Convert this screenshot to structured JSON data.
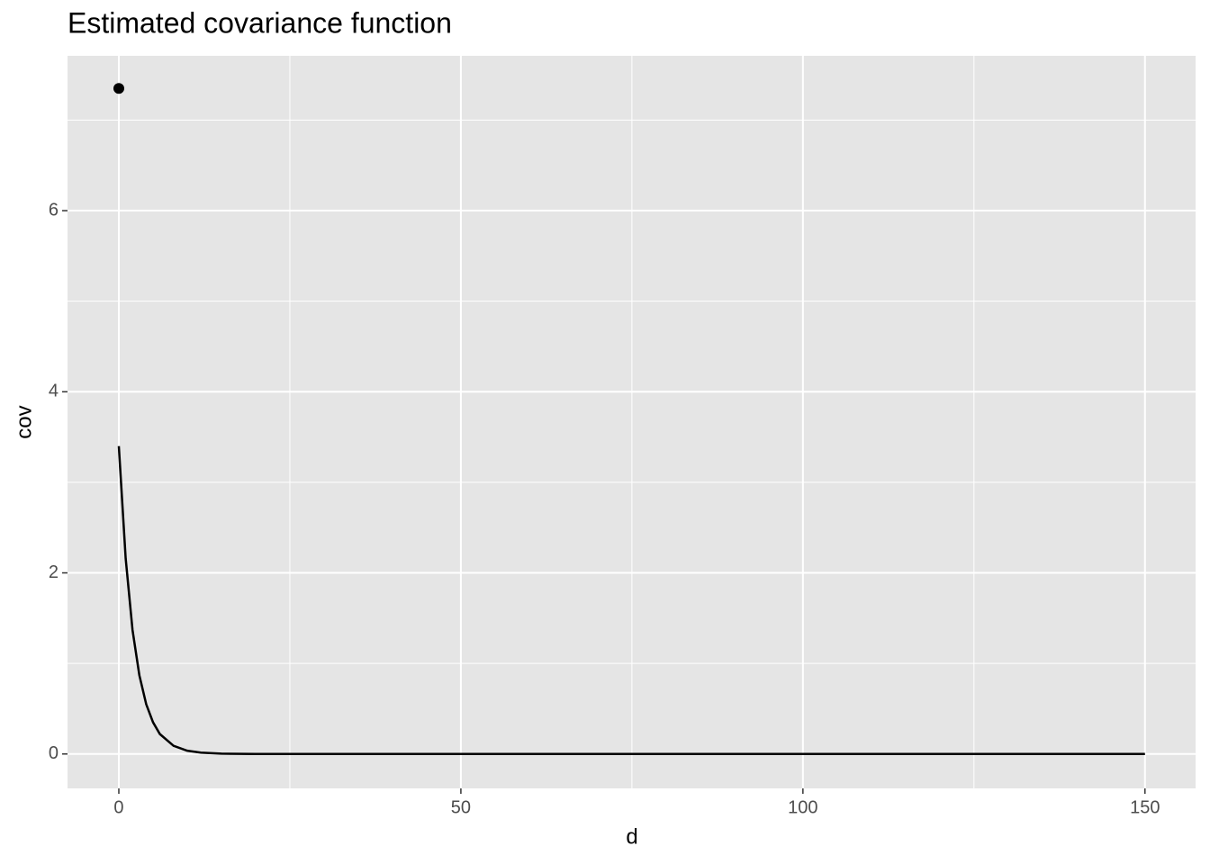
{
  "chart_data": {
    "type": "line",
    "title": "Estimated covariance function",
    "x_label": "d",
    "y_label": "cov",
    "xlim": [
      -7.5,
      157.4
    ],
    "ylim": [
      -0.38,
      7.71
    ],
    "xticks": [
      0,
      50,
      100,
      150
    ],
    "yticks": [
      0,
      2,
      4,
      6
    ],
    "minor_xticks": [
      25,
      75,
      125
    ],
    "minor_yticks": [
      1,
      3,
      5,
      7
    ],
    "grid": true,
    "panel_color": "#e5e5e5",
    "line": {
      "color": "#000000",
      "x": [
        0,
        1,
        2,
        3,
        4,
        5,
        6,
        8,
        10,
        12,
        15,
        20,
        50,
        100,
        150
      ],
      "values": [
        3.4,
        2.16,
        1.37,
        0.87,
        0.55,
        0.35,
        0.22,
        0.09,
        0.036,
        0.015,
        0.004,
        0,
        0,
        0,
        0
      ]
    },
    "points": {
      "color": "#000000",
      "x": [
        0
      ],
      "values": [
        7.35
      ]
    }
  }
}
